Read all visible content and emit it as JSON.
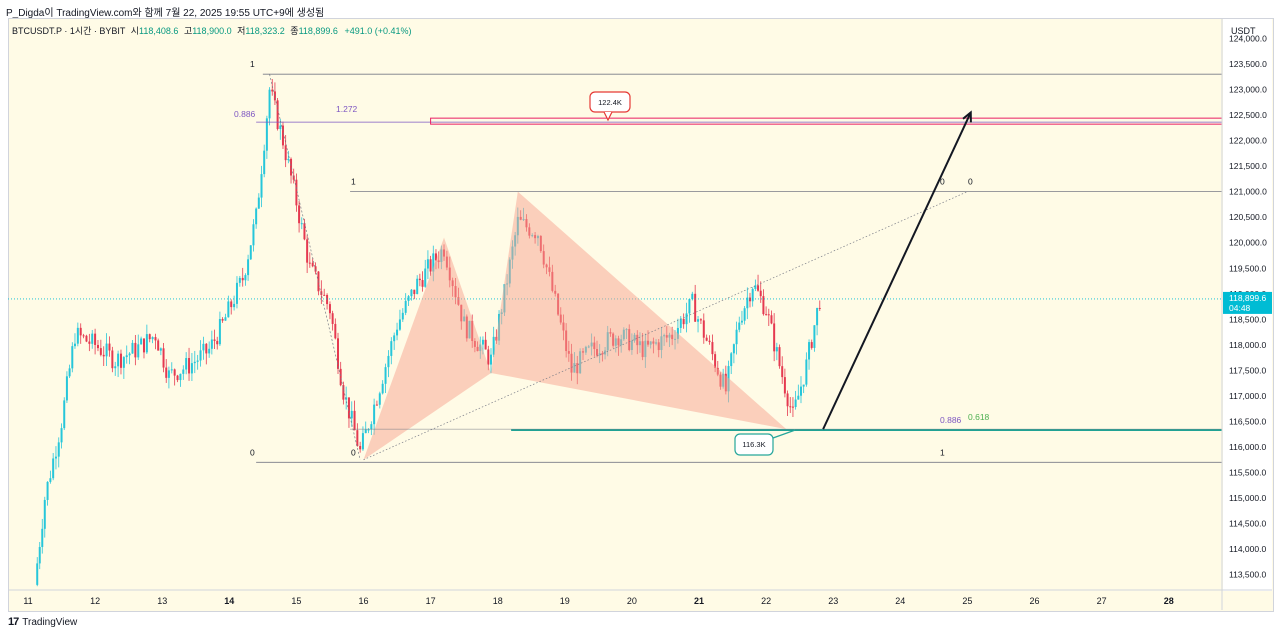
{
  "header": {
    "caption": "P_Digda이 TradingView.com와 함께 7월 22, 2025 19:55 UTC+9에 생성됨"
  },
  "symbol": {
    "name": "BTCUSDT.P · 1시간 · BYBIT",
    "open_label": "시",
    "open": "118,408.6",
    "high_label": "고",
    "high": "118,900.0",
    "low_label": "저",
    "low": "118,323.2",
    "close_label": "종",
    "close": "118,899.6",
    "change": "+491.0 (+0.41%)"
  },
  "price_axis": {
    "currency": "USDT",
    "ticks": [
      124000,
      123500,
      123000,
      122500,
      122000,
      121500,
      121000,
      120500,
      120000,
      119500,
      119000,
      118500,
      118000,
      117500,
      117000,
      116500,
      116000,
      115500,
      115000,
      114500,
      114000,
      113500
    ],
    "last_price": "118,899.6",
    "countdown": "04:48"
  },
  "time_axis": {
    "labels": [
      "11",
      "12",
      "13",
      "14",
      "15",
      "16",
      "17",
      "18",
      "19",
      "20",
      "21",
      "22",
      "23",
      "24",
      "25",
      "26",
      "27",
      "28"
    ],
    "bold": [
      "14",
      "21",
      "28"
    ]
  },
  "annotations": {
    "fib_top": [
      "1",
      "0.886",
      "1.272"
    ],
    "fib_mid": [
      "1",
      "0",
      "0"
    ],
    "fib_bottom": [
      "0",
      "0",
      "1",
      "0.886",
      "0.618"
    ],
    "callout_upper": "122.4K",
    "callout_lower": "116.3K"
  },
  "colors": {
    "up": "#26c6da",
    "down": "#e53950",
    "pattern_fill": "#f7a48f",
    "zone": "#e91e63",
    "green_line": "#4caf50",
    "last_price_bg": "#00bcd4"
  },
  "chart_data": {
    "type": "candlestick",
    "title": "",
    "ylim": [
      113200,
      124400
    ],
    "key_levels": [
      123300,
      122400,
      121000,
      116350,
      115700
    ],
    "harmonic_points": [
      {
        "x": "16",
        "y": 115750
      },
      {
        "x": "17.2",
        "y": 120100
      },
      {
        "x": "17.9",
        "y": 117450
      },
      {
        "x": "18.3",
        "y": 121000
      },
      {
        "x": "22.3",
        "y": 116350
      }
    ],
    "projection": {
      "from": "22.4 116350",
      "to": "25 122550"
    },
    "path": [
      {
        "x": 11.1,
        "y": 113300
      },
      {
        "x": 11.25,
        "y": 115000
      },
      {
        "x": 11.5,
        "y": 116500
      },
      {
        "x": 11.7,
        "y": 118200
      },
      {
        "x": 12.0,
        "y": 118000
      },
      {
        "x": 12.3,
        "y": 117700
      },
      {
        "x": 12.6,
        "y": 117900
      },
      {
        "x": 12.9,
        "y": 118200
      },
      {
        "x": 13.1,
        "y": 117400
      },
      {
        "x": 13.4,
        "y": 117600
      },
      {
        "x": 13.7,
        "y": 117900
      },
      {
        "x": 13.9,
        "y": 118400
      },
      {
        "x": 14.2,
        "y": 119300
      },
      {
        "x": 14.4,
        "y": 120500
      },
      {
        "x": 14.6,
        "y": 123000
      },
      {
        "x": 14.8,
        "y": 122000
      },
      {
        "x": 15.0,
        "y": 120800
      },
      {
        "x": 15.2,
        "y": 119500
      },
      {
        "x": 15.5,
        "y": 118700
      },
      {
        "x": 15.7,
        "y": 117100
      },
      {
        "x": 15.95,
        "y": 115900
      },
      {
        "x": 16.2,
        "y": 117000
      },
      {
        "x": 16.5,
        "y": 118400
      },
      {
        "x": 16.8,
        "y": 119200
      },
      {
        "x": 17.2,
        "y": 119900
      },
      {
        "x": 17.5,
        "y": 118400
      },
      {
        "x": 17.9,
        "y": 117700
      },
      {
        "x": 18.1,
        "y": 119000
      },
      {
        "x": 18.3,
        "y": 120400
      },
      {
        "x": 18.6,
        "y": 120200
      },
      {
        "x": 18.9,
        "y": 118600
      },
      {
        "x": 19.1,
        "y": 117500
      },
      {
        "x": 19.4,
        "y": 117900
      },
      {
        "x": 19.8,
        "y": 118200
      },
      {
        "x": 20.2,
        "y": 117900
      },
      {
        "x": 20.6,
        "y": 118200
      },
      {
        "x": 20.9,
        "y": 118800
      },
      {
        "x": 21.2,
        "y": 117800
      },
      {
        "x": 21.4,
        "y": 117100
      },
      {
        "x": 21.6,
        "y": 118500
      },
      {
        "x": 21.8,
        "y": 119200
      },
      {
        "x": 22.0,
        "y": 118700
      },
      {
        "x": 22.2,
        "y": 117600
      },
      {
        "x": 22.4,
        "y": 116600
      },
      {
        "x": 22.6,
        "y": 117600
      },
      {
        "x": 22.8,
        "y": 118900
      }
    ]
  }
}
